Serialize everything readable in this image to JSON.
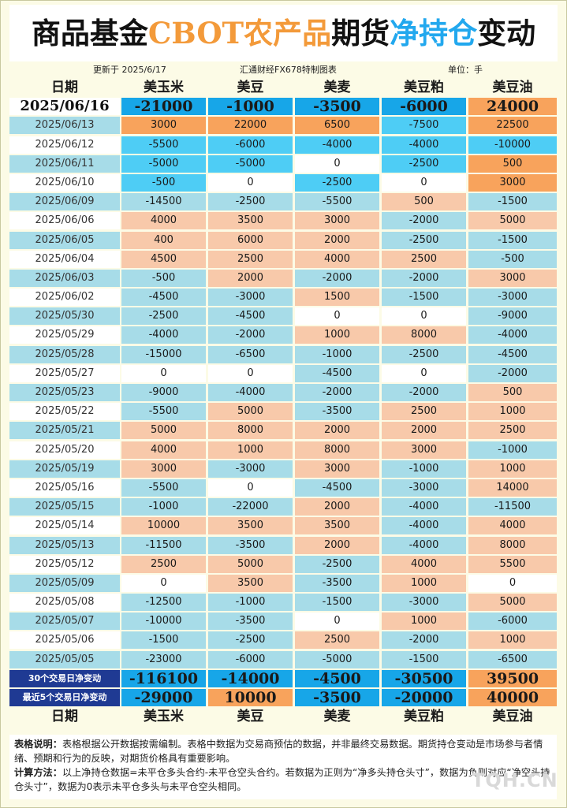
{
  "title": {
    "part1": "商品基金",
    "part2": "CBOT农产品",
    "part3": "期货",
    "part4": "净持仓",
    "part5": "变动"
  },
  "meta": {
    "updated": "更新于 2025/6/17",
    "source": "汇通财经FX678特制图表",
    "unit": "单位：手"
  },
  "colors": {
    "orange": "#f8a35c",
    "peach": "#f8c9aa",
    "blue_dark": "#17a6e8",
    "blue_mid": "#4ecdf5",
    "blue_light": "#a7dce8",
    "white": "#ffffff",
    "navy": "#1f3a93"
  },
  "chart_data": {
    "type": "table",
    "header_label": "日期",
    "columns": [
      "美玉米",
      "美豆",
      "美麦",
      "美豆粕",
      "美豆油"
    ],
    "rows": [
      {
        "date": "2025/06/16",
        "values": [
          -21000,
          -1000,
          -3500,
          -6000,
          24000
        ]
      },
      {
        "date": "2025/06/13",
        "values": [
          3000,
          22000,
          6500,
          -7500,
          22500
        ]
      },
      {
        "date": "2025/06/12",
        "values": [
          -5500,
          -6000,
          -4000,
          -4000,
          -10000
        ]
      },
      {
        "date": "2025/06/11",
        "values": [
          -5000,
          -5000,
          0,
          -2500,
          500
        ]
      },
      {
        "date": "2025/06/10",
        "values": [
          -500,
          0,
          -2500,
          0,
          3000
        ]
      },
      {
        "date": "2025/06/09",
        "values": [
          -14500,
          -2500,
          -5500,
          500,
          -1500
        ]
      },
      {
        "date": "2025/06/06",
        "values": [
          4000,
          3500,
          3000,
          -2000,
          5000
        ]
      },
      {
        "date": "2025/06/05",
        "values": [
          400,
          6000,
          2000,
          -2500,
          -1500
        ]
      },
      {
        "date": "2025/06/04",
        "values": [
          4500,
          2500,
          4000,
          2500,
          -500
        ]
      },
      {
        "date": "2025/06/03",
        "values": [
          -500,
          2000,
          -2000,
          -2000,
          3000
        ]
      },
      {
        "date": "2025/06/02",
        "values": [
          -4500,
          -3000,
          1500,
          -1500,
          -3000
        ]
      },
      {
        "date": "2025/05/30",
        "values": [
          -2500,
          -4500,
          0,
          0,
          -9000
        ]
      },
      {
        "date": "2025/05/29",
        "values": [
          -4000,
          -2000,
          1000,
          8000,
          -4000
        ]
      },
      {
        "date": "2025/05/28",
        "values": [
          -15000,
          -6500,
          -1000,
          -2500,
          -4500
        ]
      },
      {
        "date": "2025/05/27",
        "values": [
          0,
          0,
          -4500,
          0,
          -2000
        ]
      },
      {
        "date": "2025/05/23",
        "values": [
          -9000,
          -4000,
          -2000,
          -2000,
          500
        ]
      },
      {
        "date": "2025/05/22",
        "values": [
          -5500,
          5000,
          -3500,
          2500,
          1000
        ]
      },
      {
        "date": "2025/05/21",
        "values": [
          5000,
          8000,
          2000,
          2000,
          2500
        ]
      },
      {
        "date": "2025/05/20",
        "values": [
          4000,
          1000,
          8000,
          3000,
          -1000
        ]
      },
      {
        "date": "2025/05/19",
        "values": [
          3000,
          -3000,
          3000,
          -1000,
          1000
        ]
      },
      {
        "date": "2025/05/16",
        "values": [
          -5500,
          0,
          -4500,
          -3000,
          14000
        ]
      },
      {
        "date": "2025/05/15",
        "values": [
          -1000,
          -22000,
          2000,
          -4000,
          -11500
        ]
      },
      {
        "date": "2025/05/14",
        "values": [
          10000,
          3500,
          3500,
          -4000,
          4000
        ]
      },
      {
        "date": "2025/05/13",
        "values": [
          -11500,
          -3500,
          2000,
          -4000,
          8000
        ]
      },
      {
        "date": "2025/05/12",
        "values": [
          2500,
          5000,
          -2500,
          4000,
          5500
        ]
      },
      {
        "date": "2025/05/09",
        "values": [
          0,
          3500,
          -3500,
          1000,
          0
        ]
      },
      {
        "date": "2025/05/08",
        "values": [
          -12500,
          -1000,
          -1500,
          -3000,
          5000
        ]
      },
      {
        "date": "2025/05/07",
        "values": [
          -10000,
          -3500,
          0,
          1000,
          -6000
        ]
      },
      {
        "date": "2025/05/06",
        "values": [
          -1500,
          -2500,
          2500,
          -2000,
          1000
        ]
      },
      {
        "date": "2025/05/05",
        "values": [
          -23000,
          -6000,
          -5000,
          -1500,
          -6500
        ]
      }
    ],
    "summary": [
      {
        "label": "30个交易日净变动",
        "values": [
          -116100,
          -14000,
          -4500,
          -30500,
          39500
        ]
      },
      {
        "label": "最近5个交易日净变动",
        "values": [
          -29000,
          10000,
          -3500,
          -20000,
          40000
        ]
      }
    ]
  },
  "notes": {
    "label1": "表格说明：",
    "text1": "表格根据公开数据按需编制。表格中数据为交易商预估的数据，并非最终交易数据。期货持仓变动是市场参与者情绪、预期和行为的反映，对期货价格具有重要影响。",
    "label2": "计算方法：",
    "text2": "以上净持仓数据=未平仓多头合约-未平仓空头合约。若数据为正则为“净多头持仓头寸”，数据为负则对应“净空头持仓头寸”，数据为0表示未平仓多头与未平仓空头相同。"
  },
  "watermark": "TQH.CN"
}
